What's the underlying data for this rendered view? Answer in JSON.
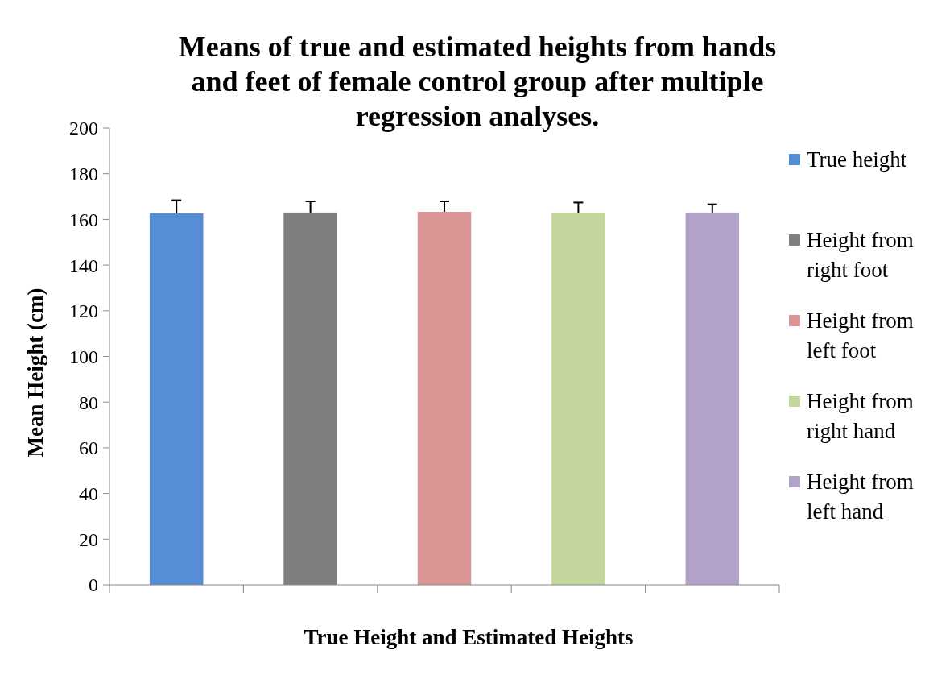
{
  "chart_data": {
    "type": "bar",
    "title": "Means of true and estimated heights from hands and feet of female control group after multiple regression analyses.",
    "xlabel": "True Height and Estimated Heights",
    "ylabel": "Mean Height (cm)",
    "categories": [
      null,
      null,
      null,
      null,
      null
    ],
    "series": [
      {
        "name": "True height",
        "color": "#558ed5",
        "values": [
          162.6,
          null,
          null,
          null,
          null
        ],
        "errors": [
          [
            162.6,
            168.4
          ],
          null,
          null,
          null,
          null
        ]
      },
      {
        "name": "Height from right foot",
        "color": "#7f7f7f",
        "values": [
          null,
          163.0,
          null,
          null,
          null
        ],
        "errors": [
          null,
          [
            163.0,
            167.9
          ],
          null,
          null,
          null
        ]
      },
      {
        "name": "Height from left foot",
        "color": "#d99694",
        "values": [
          null,
          null,
          163.3,
          null,
          null
        ],
        "errors": [
          null,
          null,
          [
            163.3,
            167.9
          ],
          null,
          null
        ]
      },
      {
        "name": "Height from right hand",
        "color": "#c3d69b",
        "values": [
          null,
          null,
          null,
          163.0,
          null
        ],
        "errors": [
          null,
          null,
          null,
          [
            163.0,
            167.4
          ],
          null
        ]
      },
      {
        "name": "Height from left hand",
        "color": "#b3a2c7",
        "values": [
          null,
          null,
          null,
          null,
          163.0
        ],
        "errors": [
          null,
          null,
          null,
          null,
          [
            163.0,
            166.6
          ]
        ]
      }
    ],
    "ylim": [
      0,
      200
    ],
    "yticks": [
      0,
      20,
      40,
      60,
      80,
      100,
      120,
      140,
      160,
      180,
      200
    ],
    "legend": "right"
  }
}
